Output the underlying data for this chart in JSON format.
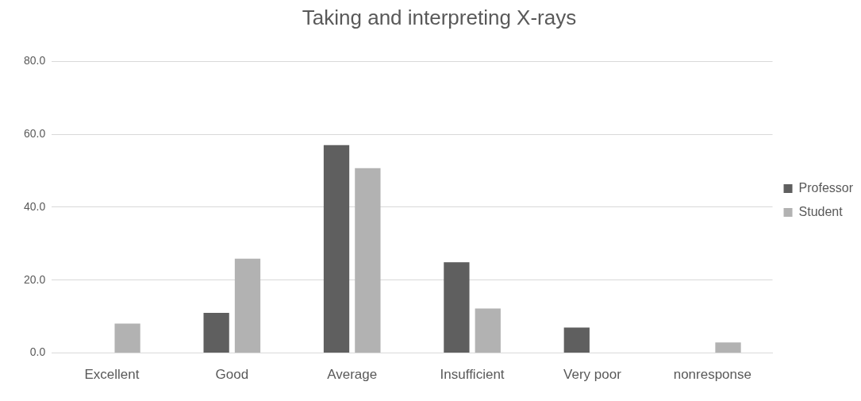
{
  "chart_data": {
    "type": "bar",
    "title": "Taking and interpreting X-rays",
    "categories": [
      "Excellent",
      "Good",
      "Average",
      "Insufficient",
      "Very poor",
      "nonresponse"
    ],
    "series": [
      {
        "name": "Professor",
        "color": "#5f5f5f",
        "values": [
          0,
          11.0,
          57.0,
          24.9,
          7.0,
          0
        ]
      },
      {
        "name": "Student",
        "color": "#b2b2b2",
        "values": [
          8.1,
          25.9,
          50.7,
          12.2,
          0,
          2.9
        ]
      }
    ],
    "ylim": [
      0,
      80
    ],
    "yticks": [
      {
        "value": 0,
        "label": "0.0"
      },
      {
        "value": 20,
        "label": "20.0"
      },
      {
        "value": 40,
        "label": "40.0"
      },
      {
        "value": 60,
        "label": "60.0"
      },
      {
        "value": 80,
        "label": "80.0"
      }
    ],
    "grid": "y",
    "legend": "right"
  }
}
